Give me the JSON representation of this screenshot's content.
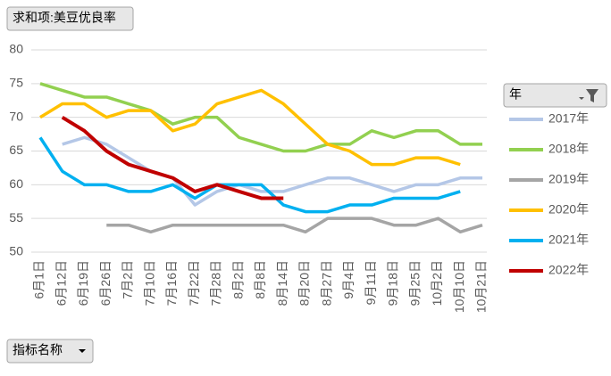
{
  "chart_data": {
    "type": "line",
    "title": "求和项:美豆优良率",
    "legend_title": "年",
    "axis_field": "指标名称",
    "categories": [
      "6月1日",
      "6月12日",
      "6月19日",
      "6月26日",
      "7月2日",
      "7月10日",
      "7月16日",
      "7月22日",
      "7月28日",
      "8月2日",
      "8月8日",
      "8月14日",
      "8月20日",
      "8月27日",
      "9月4日",
      "9月11日",
      "9月18日",
      "9月25日",
      "10月2日",
      "10月10日",
      "10月21日"
    ],
    "series": [
      {
        "name": "2017年",
        "color": "#b4c7e7",
        "values": [
          null,
          66,
          67,
          66,
          64,
          62,
          61,
          57,
          59,
          60,
          59,
          59,
          60,
          61,
          61,
          60,
          59,
          60,
          60,
          61,
          61
        ]
      },
      {
        "name": "2018年",
        "color": "#92d050",
        "values": [
          75,
          74,
          73,
          73,
          72,
          71,
          69,
          70,
          70,
          67,
          66,
          65,
          65,
          66,
          66,
          68,
          67,
          68,
          68,
          66,
          66
        ]
      },
      {
        "name": "2019年",
        "color": "#a5a5a5",
        "values": [
          null,
          null,
          null,
          54,
          54,
          53,
          54,
          54,
          54,
          54,
          54,
          54,
          53,
          55,
          55,
          55,
          54,
          54,
          55,
          53,
          54
        ]
      },
      {
        "name": "2020年",
        "color": "#ffc000",
        "values": [
          70,
          72,
          72,
          70,
          71,
          71,
          68,
          69,
          72,
          73,
          74,
          72,
          69,
          66,
          65,
          63,
          63,
          64,
          64,
          63,
          null
        ]
      },
      {
        "name": "2021年",
        "color": "#00b0f0",
        "values": [
          67,
          62,
          60,
          60,
          59,
          59,
          60,
          58,
          60,
          60,
          60,
          57,
          56,
          56,
          57,
          57,
          58,
          58,
          58,
          59,
          null
        ]
      },
      {
        "name": "2022年",
        "color": "#c00000",
        "values": [
          null,
          70,
          68,
          65,
          63,
          62,
          61,
          59,
          60,
          59,
          58,
          58,
          null,
          null,
          null,
          null,
          null,
          null,
          null,
          null,
          null
        ]
      }
    ],
    "ylim": [
      50,
      80
    ],
    "yticks": [
      50,
      55,
      60,
      65,
      70,
      75,
      80
    ],
    "grid": true,
    "legend": "right"
  }
}
